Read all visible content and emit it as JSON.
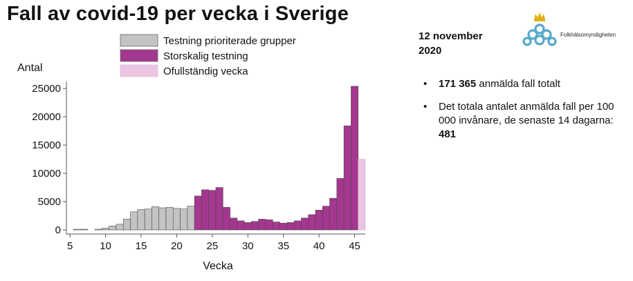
{
  "title": "Fall av covid-19 per vecka i Sverige",
  "date_line1": "12 november",
  "date_line2": "2020",
  "logo": {
    "name": "Folkhälsomyndigheten"
  },
  "bullets": [
    {
      "bold": "171 365",
      "text": " anmälda fall totalt"
    },
    {
      "text": "Det totala antalet anmälda fall per 100 000 invånare, de senaste 14 dagarna: ",
      "bold": "481"
    }
  ],
  "colors": {
    "prioriterade": "#c3c3c3",
    "storskalig": "#a4378f",
    "ofullstandig": "#ebc6e3",
    "edge": "#4a4a4a"
  },
  "chart_data": {
    "type": "bar",
    "xlabel": "Vecka",
    "ylabel": "Antal",
    "xlim": [
      4.5,
      46.5
    ],
    "ylim": [
      0,
      26000
    ],
    "xticks": [
      5,
      10,
      15,
      20,
      25,
      30,
      35,
      40,
      45
    ],
    "yticks": [
      0,
      5000,
      10000,
      15000,
      20000,
      25000
    ],
    "legend": [
      {
        "label": "Testning prioriterade grupper",
        "color": "#c3c3c3"
      },
      {
        "label": "Storskalig testning",
        "color": "#a4378f"
      },
      {
        "label": "Ofullständig vecka",
        "color": "#ebc6e3"
      }
    ],
    "series": [
      {
        "name": "Testning prioriterade grupper",
        "x": [
          6,
          7,
          9,
          10,
          11,
          12,
          13,
          14,
          15,
          16,
          17,
          18,
          19,
          20,
          21,
          22
        ],
        "values": [
          10,
          5,
          100,
          300,
          700,
          1000,
          1900,
          3200,
          3600,
          3700,
          4100,
          3900,
          4000,
          3800,
          3700,
          4200
        ]
      },
      {
        "name": "Storskalig testning",
        "x": [
          23,
          24,
          25,
          26,
          27,
          28,
          29,
          30,
          31,
          32,
          33,
          34,
          35,
          36,
          37,
          38,
          39,
          40,
          41,
          42,
          43,
          44,
          45
        ],
        "values": [
          6000,
          7100,
          7000,
          7500,
          4000,
          2100,
          1600,
          1300,
          1500,
          1900,
          1800,
          1400,
          1200,
          1300,
          1600,
          2100,
          2700,
          3500,
          4200,
          5600,
          9100,
          18400,
          25400
        ]
      },
      {
        "name": "Ofullständig vecka",
        "x": [
          46
        ],
        "values": [
          12500
        ]
      }
    ]
  }
}
